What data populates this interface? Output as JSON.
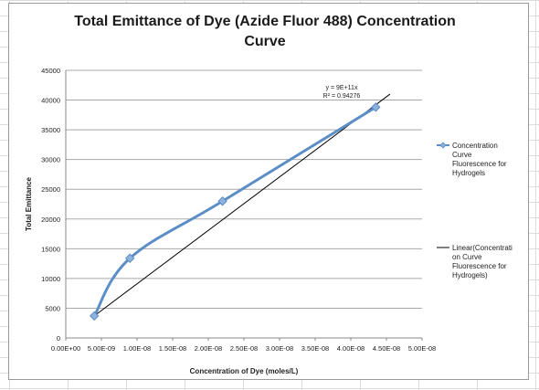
{
  "chart_data": {
    "type": "scatter",
    "title": "Total Emittance of Dye (Azide Fluor 488) Concentration Curve",
    "xlabel": "Concentration of Dye (moles/L)",
    "ylabel": "Total Emittance",
    "xlim": [
      0,
      5e-08
    ],
    "ylim": [
      0,
      45000
    ],
    "x_ticks": [
      "0.00E+00",
      "5.00E-09",
      "1.00E-08",
      "1.50E-08",
      "2.00E-08",
      "2.50E-08",
      "3.00E-08",
      "3.50E-08",
      "4.00E-08",
      "4.50E-08",
      "5.00E-08"
    ],
    "y_ticks": [
      "0",
      "5000",
      "10000",
      "15000",
      "20000",
      "25000",
      "30000",
      "35000",
      "40000",
      "45000"
    ],
    "grid": "horizontal",
    "legend_position": "right",
    "series": [
      {
        "name": "Concentration Curve Fluorescence for Hydrogels",
        "legend_lines": [
          "Concentration",
          "Curve",
          "Fluorescence for",
          "Hydrogels"
        ],
        "color": "#5b8ec7",
        "style": "smoothed-line-with-diamond-markers",
        "x": [
          4e-09,
          9e-09,
          2.2e-08,
          4.35e-08
        ],
        "y": [
          3700,
          13400,
          23000,
          38800
        ]
      },
      {
        "name": "Linear(Concentration Curve Fluorescence for Hydrogels)",
        "legend_lines": [
          "Linear(Concentrati",
          "on Curve",
          "Fluorescence for",
          "Hydrogels)"
        ],
        "color": "#000000",
        "style": "trendline",
        "x": [
          4e-09,
          4.55e-08
        ],
        "y": [
          3700,
          41000
        ]
      }
    ],
    "annotations": [
      "y = 9E+11x",
      "R² = 0.94276"
    ]
  }
}
